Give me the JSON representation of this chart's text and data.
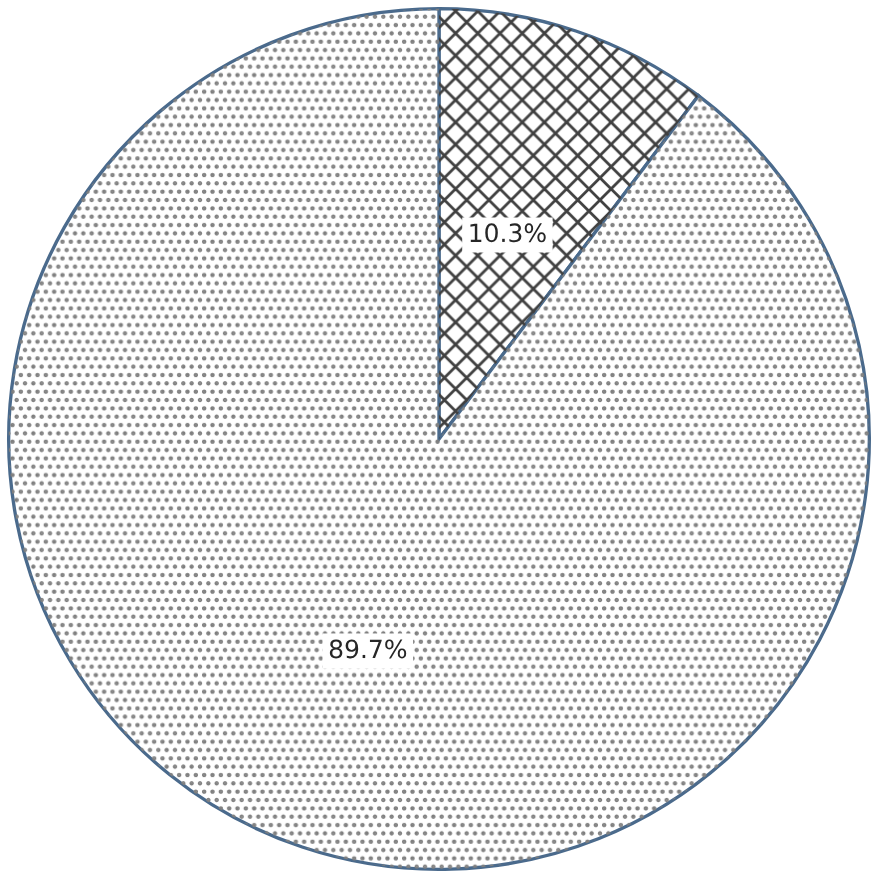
{
  "chart_data": {
    "type": "pie",
    "categories": [
      null,
      null
    ],
    "values": [
      10.3,
      89.7
    ],
    "colors": [
      "#ffffff",
      "#ffffff"
    ],
    "value_labels": [
      "10.3%",
      "89.7%"
    ],
    "legend": false
  }
}
